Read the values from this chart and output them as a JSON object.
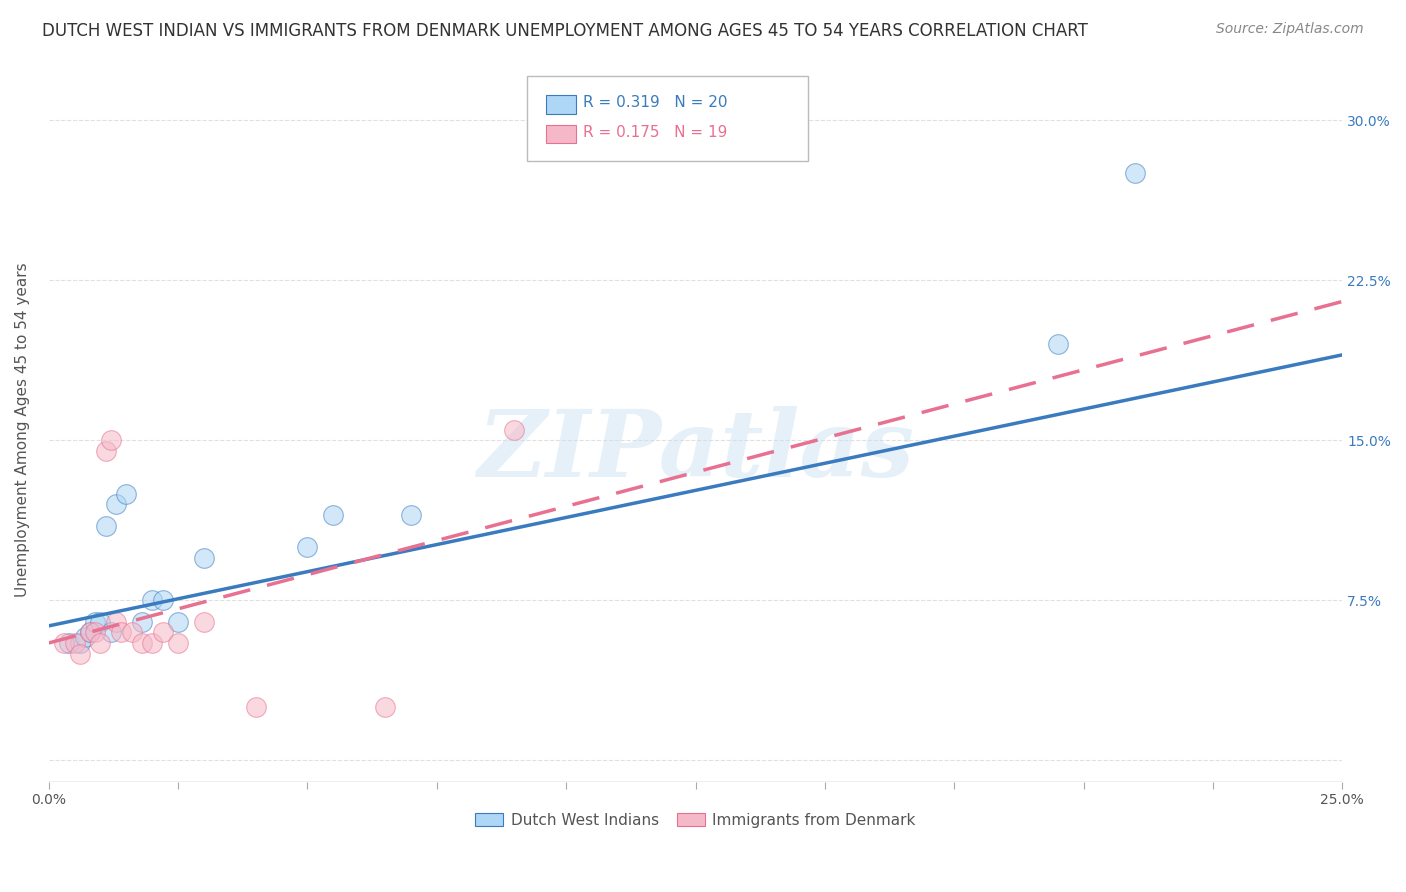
{
  "title": "DUTCH WEST INDIAN VS IMMIGRANTS FROM DENMARK UNEMPLOYMENT AMONG AGES 45 TO 54 YEARS CORRELATION CHART",
  "source": "Source: ZipAtlas.com",
  "ylabel": "Unemployment Among Ages 45 to 54 years",
  "xlim": [
    0.0,
    0.25
  ],
  "ylim": [
    -0.01,
    0.32
  ],
  "xticks": [
    0.0,
    0.025,
    0.05,
    0.075,
    0.1,
    0.125,
    0.15,
    0.175,
    0.2,
    0.225,
    0.25
  ],
  "xtick_labels": [
    "0.0%",
    "",
    "",
    "",
    "",
    "",
    "",
    "",
    "",
    "",
    "25.0%"
  ],
  "ytick_positions": [
    0.0,
    0.075,
    0.15,
    0.225,
    0.3
  ],
  "ytick_labels": [
    "",
    "7.5%",
    "15.0%",
    "22.5%",
    "30.0%"
  ],
  "blue_scatter_x": [
    0.004,
    0.006,
    0.007,
    0.008,
    0.009,
    0.01,
    0.011,
    0.012,
    0.013,
    0.015,
    0.018,
    0.02,
    0.022,
    0.025,
    0.03,
    0.05,
    0.055,
    0.07,
    0.195,
    0.21
  ],
  "blue_scatter_y": [
    0.055,
    0.055,
    0.058,
    0.06,
    0.065,
    0.065,
    0.11,
    0.06,
    0.12,
    0.125,
    0.065,
    0.075,
    0.075,
    0.065,
    0.095,
    0.1,
    0.115,
    0.115,
    0.195,
    0.275
  ],
  "pink_scatter_x": [
    0.003,
    0.005,
    0.006,
    0.008,
    0.009,
    0.01,
    0.011,
    0.012,
    0.013,
    0.014,
    0.016,
    0.018,
    0.02,
    0.022,
    0.025,
    0.03,
    0.04,
    0.065,
    0.09
  ],
  "pink_scatter_y": [
    0.055,
    0.055,
    0.05,
    0.06,
    0.06,
    0.055,
    0.145,
    0.15,
    0.065,
    0.06,
    0.06,
    0.055,
    0.055,
    0.06,
    0.055,
    0.065,
    0.025,
    0.025,
    0.155
  ],
  "blue_line_x": [
    0.0,
    0.25
  ],
  "blue_line_y": [
    0.063,
    0.19
  ],
  "pink_line_x": [
    0.0,
    0.25
  ],
  "pink_line_y": [
    0.055,
    0.215
  ],
  "R_blue": "0.319",
  "N_blue": "20",
  "R_pink": "0.175",
  "N_pink": "19",
  "blue_color": "#aed6f5",
  "blue_line_color": "#3a7bbf",
  "pink_color": "#f5b8c8",
  "pink_line_color": "#e87090",
  "watermark_text": "ZIPatlas",
  "title_fontsize": 12,
  "source_fontsize": 10,
  "label_fontsize": 11,
  "tick_fontsize": 10,
  "legend_fontsize": 11,
  "scatter_size": 200,
  "scatter_alpha": 0.55,
  "line_width": 2.5,
  "grid_color": "#cccccc",
  "grid_alpha": 0.6
}
